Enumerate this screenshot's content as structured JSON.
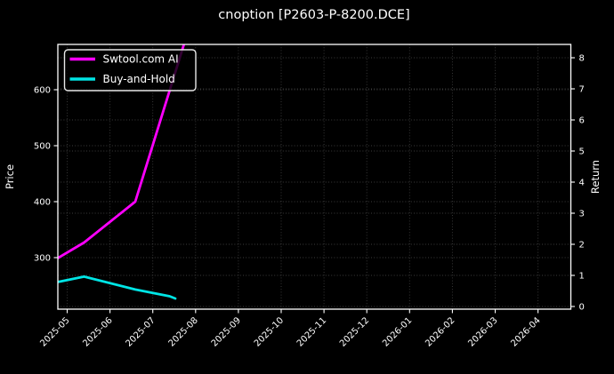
{
  "window": {
    "background": "#000000",
    "text_color": "#ffffff"
  },
  "chart_data": {
    "type": "line",
    "title": "cnoption [P2603-P-8200.DCE]",
    "xlabel": "",
    "ylabel": "Price",
    "ylabel_right": "Return",
    "x_ticklabels": [
      "2025-05",
      "2025-06",
      "2025-07",
      "2025-08",
      "2025-09",
      "2025-10",
      "2025-11",
      "2025-12",
      "2026-01",
      "2026-02",
      "2026-03",
      "2026-04"
    ],
    "yticks_left": [
      300,
      400,
      500,
      600
    ],
    "yticks_right": [
      0,
      1,
      2,
      3,
      4,
      5,
      6,
      7,
      8
    ],
    "ylim_left": [
      206,
      686
    ],
    "ylim_right": [
      -0.1,
      8.5
    ],
    "x_range": [
      "2025-04-24",
      "2026-04-26"
    ],
    "grid": true,
    "grid_style": "dotted",
    "grid_color": "#3d3d3d",
    "legend": {
      "position": "upper-left",
      "entries": [
        "Swtool.com AI",
        "Buy-and-Hold"
      ]
    },
    "series": [
      {
        "name": "Swtool.com AI",
        "color": "#ff00ff",
        "axis": "left",
        "points": [
          [
            "2025-04-24",
            298
          ],
          [
            "2025-05-13",
            327
          ],
          [
            "2025-06-19",
            400
          ],
          [
            "2025-07-23",
            680
          ]
        ]
      },
      {
        "name": "Buy-and-Hold",
        "color": "#00e5e5",
        "axis": "left",
        "points": [
          [
            "2025-04-24",
            256
          ],
          [
            "2025-05-13",
            266
          ],
          [
            "2025-06-19",
            243
          ],
          [
            "2025-07-13",
            231
          ],
          [
            "2025-07-17",
            227
          ]
        ]
      }
    ]
  }
}
